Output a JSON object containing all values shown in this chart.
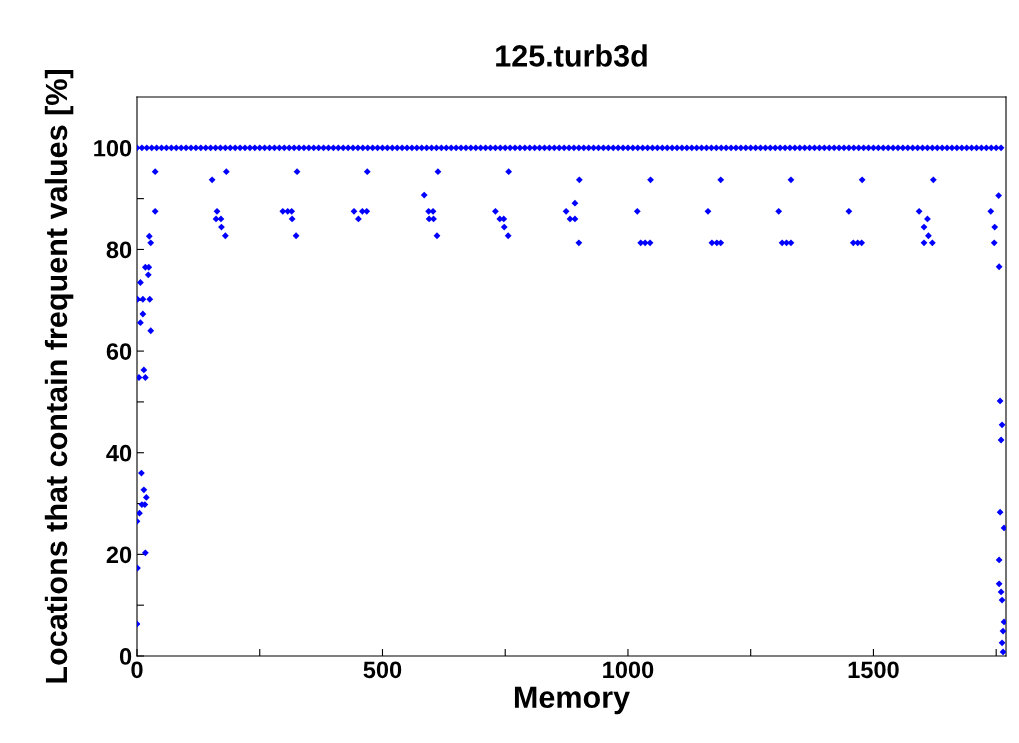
{
  "chart_data": {
    "type": "scatter",
    "title": "125.turb3d",
    "xlabel": "Memory",
    "ylabel": "Locations that contain frequent values [%]",
    "xlim": [
      0,
      1770
    ],
    "ylim": [
      0,
      110
    ],
    "xticks": [
      0,
      {
        "value": 250,
        "label": null
      },
      500,
      {
        "value": 750,
        "label": null
      },
      1000,
      {
        "value": 1250,
        "label": null
      },
      1500,
      {
        "value": 1750,
        "label": null
      }
    ],
    "yticks": [
      0,
      {
        "value": 10,
        "label": null
      },
      20,
      {
        "value": 30,
        "label": null
      },
      40,
      {
        "value": 50,
        "label": null
      },
      60,
      {
        "value": 70,
        "label": null
      },
      80,
      {
        "value": 90,
        "label": null
      },
      100
    ],
    "marker": "diamond",
    "grid": false,
    "legend": false,
    "series": [
      {
        "color": "#0000ff",
        "x": [
          0,
          10,
          20,
          30,
          40,
          50,
          60,
          70,
          80,
          90,
          100,
          110,
          120,
          130,
          140,
          150,
          160,
          170,
          180,
          190,
          200,
          210,
          220,
          230,
          240,
          250,
          260,
          270,
          280,
          290,
          300,
          310,
          320,
          330,
          340,
          350,
          360,
          370,
          380,
          390,
          400,
          410,
          420,
          430,
          440,
          450,
          460,
          470,
          480,
          490,
          500,
          510,
          520,
          530,
          540,
          550,
          560,
          570,
          580,
          590,
          600,
          610,
          620,
          630,
          640,
          650,
          660,
          670,
          680,
          690,
          700,
          710,
          720,
          730,
          740,
          750,
          760,
          770,
          780,
          790,
          800,
          810,
          820,
          830,
          840,
          850,
          860,
          870,
          880,
          890,
          900,
          910,
          920,
          930,
          940,
          950,
          960,
          970,
          980,
          990,
          1000,
          1010,
          1020,
          1030,
          1040,
          1050,
          1060,
          1070,
          1080,
          1090,
          1100,
          1110,
          1120,
          1130,
          1140,
          1150,
          1160,
          1170,
          1180,
          1190,
          1200,
          1210,
          1220,
          1230,
          1240,
          1250,
          1260,
          1270,
          1280,
          1290,
          1300,
          1310,
          1320,
          1330,
          1340,
          1350,
          1360,
          1370,
          1380,
          1390,
          1400,
          1410,
          1420,
          1430,
          1440,
          1450,
          1460,
          1470,
          1480,
          1490,
          1500,
          1510,
          1520,
          1530,
          1540,
          1550,
          1560,
          1570,
          1580,
          1590,
          1600,
          1610,
          1620,
          1630,
          1640,
          1650,
          1660,
          1670,
          1680,
          1690,
          1700,
          1710,
          1720,
          1730,
          1740,
          1750,
          1760
        ],
        "values": [
          100,
          100,
          100,
          100,
          100,
          100,
          100,
          100,
          100,
          100,
          100,
          100,
          100,
          100,
          100,
          100,
          100,
          100,
          100,
          100,
          100,
          100,
          100,
          100,
          100,
          100,
          100,
          100,
          100,
          100,
          100,
          100,
          100,
          100,
          100,
          100,
          100,
          100,
          100,
          100,
          100,
          100,
          100,
          100,
          100,
          100,
          100,
          100,
          100,
          100,
          100,
          100,
          100,
          100,
          100,
          100,
          100,
          100,
          100,
          100,
          100,
          100,
          100,
          100,
          100,
          100,
          100,
          100,
          100,
          100,
          100,
          100,
          100,
          100,
          100,
          100,
          100,
          100,
          100,
          100,
          100,
          100,
          100,
          100,
          100,
          100,
          100,
          100,
          100,
          100,
          100,
          100,
          100,
          100,
          100,
          100,
          100,
          100,
          100,
          100,
          100,
          100,
          100,
          100,
          100,
          100,
          100,
          100,
          100,
          100,
          100,
          100,
          100,
          100,
          100,
          100,
          100,
          100,
          100,
          100,
          100,
          100,
          100,
          100,
          100,
          100,
          100,
          100,
          100,
          100,
          100,
          100,
          100,
          100,
          100,
          100,
          100,
          100,
          100,
          100,
          100,
          100,
          100,
          100,
          100,
          100,
          100,
          100,
          100,
          100,
          100,
          100,
          100,
          100,
          100,
          100,
          100,
          100,
          100,
          100,
          100,
          100,
          100,
          100,
          100,
          100,
          100,
          100,
          100,
          100,
          100,
          100,
          100,
          100,
          100,
          100,
          100
        ]
      },
      {
        "color": "#0000ff",
        "x": [
          37,
          37,
          25,
          28,
          17,
          24,
          23,
          7,
          1,
          12,
          26,
          12,
          7,
          28,
          14,
          4,
          17,
          9,
          14,
          19,
          10,
          16,
          5,
          0,
          17,
          1,
          0,
          153,
          182,
          163,
          161,
          171,
          172,
          180,
          326,
          297,
          307,
          315,
          316,
          324,
          469,
          442,
          459,
          468,
          451,
          585,
          613,
          594,
          603,
          595,
          604,
          611,
          757,
          730,
          739,
          747,
          748,
          756,
          901,
          874,
          892,
          882,
          892,
          900,
          1046,
          1019,
          1026,
          1035,
          1045,
          1189,
          1163,
          1171,
          1181,
          1189,
          1332,
          1307,
          1314,
          1323,
          1332,
          1477,
          1450,
          1459,
          1468,
          1476,
          1622,
          1593,
          1610,
          1603,
          1612,
          1603,
          1620,
          1739,
          1755,
          1747,
          1746,
          1756,
          1758,
          1762,
          1760,
          1758,
          1766,
          1756,
          1756,
          1760,
          1762,
          1766,
          1764,
          1762,
          1764
        ],
        "values": [
          95.3,
          87.5,
          82.6,
          81.3,
          76.5,
          76.5,
          75,
          73.5,
          70.2,
          70.2,
          70.2,
          67.3,
          65.6,
          64,
          56.3,
          54.8,
          54.8,
          36,
          32.7,
          31.2,
          29.8,
          29.8,
          28.1,
          26.5,
          20.3,
          17.3,
          6.3,
          93.7,
          95.3,
          87.5,
          86,
          86,
          84.4,
          82.7,
          95.3,
          87.5,
          87.5,
          87.5,
          86,
          82.7,
          95.3,
          87.5,
          87.5,
          87.5,
          86,
          90.7,
          95.3,
          87.5,
          87.5,
          86,
          86,
          82.7,
          95.3,
          87.5,
          86,
          86,
          84.4,
          82.7,
          93.7,
          87.5,
          89.1,
          86,
          86,
          81.3,
          93.7,
          87.5,
          81.3,
          81.3,
          81.3,
          93.7,
          87.5,
          81.3,
          81.3,
          81.3,
          93.7,
          87.5,
          81.3,
          81.3,
          81.3,
          93.7,
          87.5,
          81.3,
          81.3,
          81.3,
          93.7,
          87.5,
          86,
          84.4,
          82.7,
          81.3,
          81.3,
          87.5,
          90.6,
          84.4,
          81.3,
          76.6,
          50.2,
          45.5,
          42.5,
          28.3,
          25.2,
          18.9,
          14.2,
          12.6,
          11,
          6.7,
          4.9,
          2.6,
          0.8
        ]
      }
    ]
  }
}
